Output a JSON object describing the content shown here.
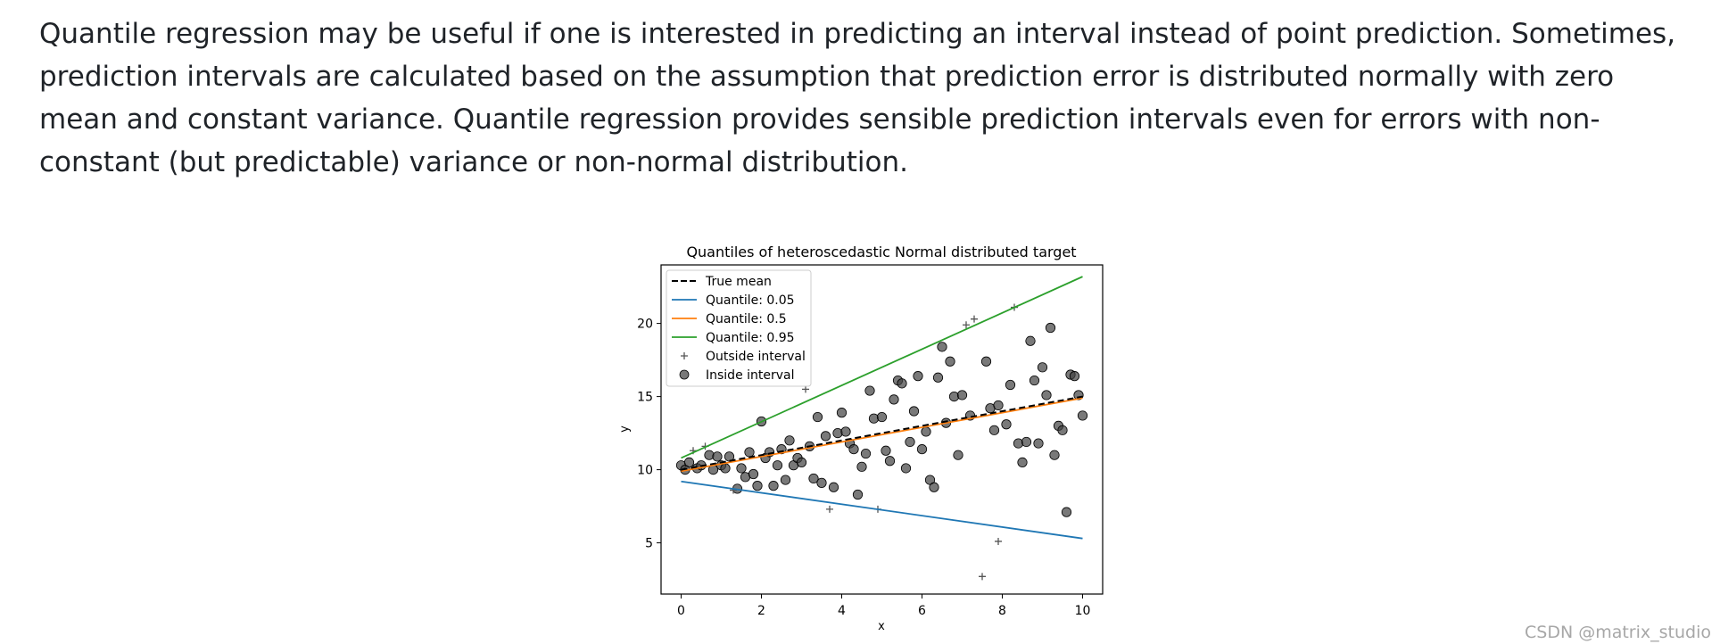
{
  "article": {
    "paragraph": "Quantile regression may be useful if one is interested in predicting an interval instead of point prediction. Sometimes, prediction intervals are calculated based on the assumption that prediction error is distributed normally with zero mean and constant variance. Quantile regression provides sensible prediction intervals even for errors with non-constant (but predictable) variance or non-normal distribution."
  },
  "watermark": "CSDN @matrix_studio",
  "chart_data": {
    "type": "line",
    "title": "Quantiles of heteroscedastic Normal distributed target",
    "xlabel": "x",
    "ylabel": "y",
    "xlim": [
      -0.5,
      10.5
    ],
    "ylim": [
      1.5,
      24.0
    ],
    "xticks": [
      0,
      2,
      4,
      6,
      8,
      10
    ],
    "yticks": [
      5,
      10,
      15,
      20
    ],
    "grid": false,
    "legend_position": "top-left",
    "colors": {
      "true_mean": "#000000",
      "q05": "#1f77b4",
      "q50": "#ff7f0e",
      "q95": "#2ca02c",
      "outside": "#555555",
      "inside": "#404040"
    },
    "legend": [
      {
        "label": "True mean",
        "style": "dashed",
        "color": "#000000"
      },
      {
        "label": "Quantile: 0.05",
        "style": "line",
        "color": "#1f77b4"
      },
      {
        "label": "Quantile: 0.5",
        "style": "line",
        "color": "#ff7f0e"
      },
      {
        "label": "Quantile: 0.95",
        "style": "line",
        "color": "#2ca02c"
      },
      {
        "label": "Outside interval",
        "style": "plus",
        "color": "#555555"
      },
      {
        "label": "Inside interval",
        "style": "circle",
        "color": "#404040"
      }
    ],
    "series": [
      {
        "name": "True mean",
        "style": "dashed",
        "x": [
          0,
          10
        ],
        "y": [
          10.0,
          15.0
        ]
      },
      {
        "name": "Quantile: 0.05",
        "style": "line",
        "x": [
          0,
          10
        ],
        "y": [
          9.2,
          5.3
        ]
      },
      {
        "name": "Quantile: 0.5",
        "style": "line",
        "x": [
          0,
          10
        ],
        "y": [
          9.9,
          14.9
        ]
      },
      {
        "name": "Quantile: 0.95",
        "style": "line",
        "x": [
          0,
          10
        ],
        "y": [
          10.8,
          23.2
        ]
      }
    ],
    "outside_points": [
      [
        0.3,
        11.3
      ],
      [
        0.6,
        11.6
      ],
      [
        1.3,
        8.6
      ],
      [
        3.1,
        15.5
      ],
      [
        3.7,
        7.3
      ],
      [
        4.9,
        7.3
      ],
      [
        7.1,
        19.9
      ],
      [
        7.3,
        20.3
      ],
      [
        7.5,
        2.7
      ],
      [
        7.9,
        5.1
      ],
      [
        8.3,
        21.1
      ]
    ],
    "inside_points": [
      [
        0.0,
        10.3
      ],
      [
        0.1,
        10.0
      ],
      [
        0.2,
        10.5
      ],
      [
        0.4,
        10.1
      ],
      [
        0.5,
        10.3
      ],
      [
        0.7,
        11.0
      ],
      [
        0.8,
        10.0
      ],
      [
        0.9,
        10.9
      ],
      [
        1.0,
        10.3
      ],
      [
        1.1,
        10.1
      ],
      [
        1.2,
        10.9
      ],
      [
        1.4,
        8.7
      ],
      [
        1.5,
        10.1
      ],
      [
        1.6,
        9.5
      ],
      [
        1.7,
        11.2
      ],
      [
        1.8,
        9.7
      ],
      [
        1.9,
        8.9
      ],
      [
        2.0,
        13.3
      ],
      [
        2.1,
        10.8
      ],
      [
        2.2,
        11.2
      ],
      [
        2.3,
        8.9
      ],
      [
        2.4,
        10.3
      ],
      [
        2.5,
        11.4
      ],
      [
        2.6,
        9.3
      ],
      [
        2.7,
        12.0
      ],
      [
        2.8,
        10.3
      ],
      [
        2.9,
        10.8
      ],
      [
        3.0,
        10.5
      ],
      [
        3.2,
        11.6
      ],
      [
        3.3,
        9.4
      ],
      [
        3.4,
        13.6
      ],
      [
        3.5,
        9.1
      ],
      [
        3.6,
        12.3
      ],
      [
        3.8,
        8.8
      ],
      [
        3.9,
        12.5
      ],
      [
        4.0,
        13.9
      ],
      [
        4.1,
        12.6
      ],
      [
        4.2,
        11.8
      ],
      [
        4.3,
        11.4
      ],
      [
        4.4,
        8.3
      ],
      [
        4.5,
        10.2
      ],
      [
        4.6,
        11.1
      ],
      [
        4.7,
        15.4
      ],
      [
        4.8,
        13.5
      ],
      [
        5.0,
        13.6
      ],
      [
        5.1,
        11.3
      ],
      [
        5.2,
        10.6
      ],
      [
        5.3,
        14.8
      ],
      [
        5.4,
        16.1
      ],
      [
        5.5,
        15.9
      ],
      [
        5.6,
        10.1
      ],
      [
        5.7,
        11.9
      ],
      [
        5.8,
        14.0
      ],
      [
        5.9,
        16.4
      ],
      [
        6.0,
        11.4
      ],
      [
        6.1,
        12.6
      ],
      [
        6.2,
        9.3
      ],
      [
        6.3,
        8.8
      ],
      [
        6.4,
        16.3
      ],
      [
        6.5,
        18.4
      ],
      [
        6.6,
        13.2
      ],
      [
        6.7,
        17.4
      ],
      [
        6.8,
        15.0
      ],
      [
        6.9,
        11.0
      ],
      [
        7.0,
        15.1
      ],
      [
        7.2,
        13.7
      ],
      [
        7.6,
        17.4
      ],
      [
        7.7,
        14.2
      ],
      [
        7.8,
        12.7
      ],
      [
        7.9,
        14.4
      ],
      [
        8.1,
        13.1
      ],
      [
        8.2,
        15.8
      ],
      [
        8.4,
        11.8
      ],
      [
        8.5,
        10.5
      ],
      [
        8.6,
        11.9
      ],
      [
        8.7,
        18.8
      ],
      [
        8.8,
        16.1
      ],
      [
        8.9,
        11.8
      ],
      [
        9.0,
        17.0
      ],
      [
        9.1,
        15.1
      ],
      [
        9.2,
        19.7
      ],
      [
        9.3,
        11.0
      ],
      [
        9.4,
        13.0
      ],
      [
        9.5,
        12.7
      ],
      [
        9.6,
        7.1
      ],
      [
        9.7,
        16.5
      ],
      [
        9.8,
        16.4
      ],
      [
        9.9,
        15.1
      ],
      [
        10.0,
        13.7
      ]
    ]
  }
}
